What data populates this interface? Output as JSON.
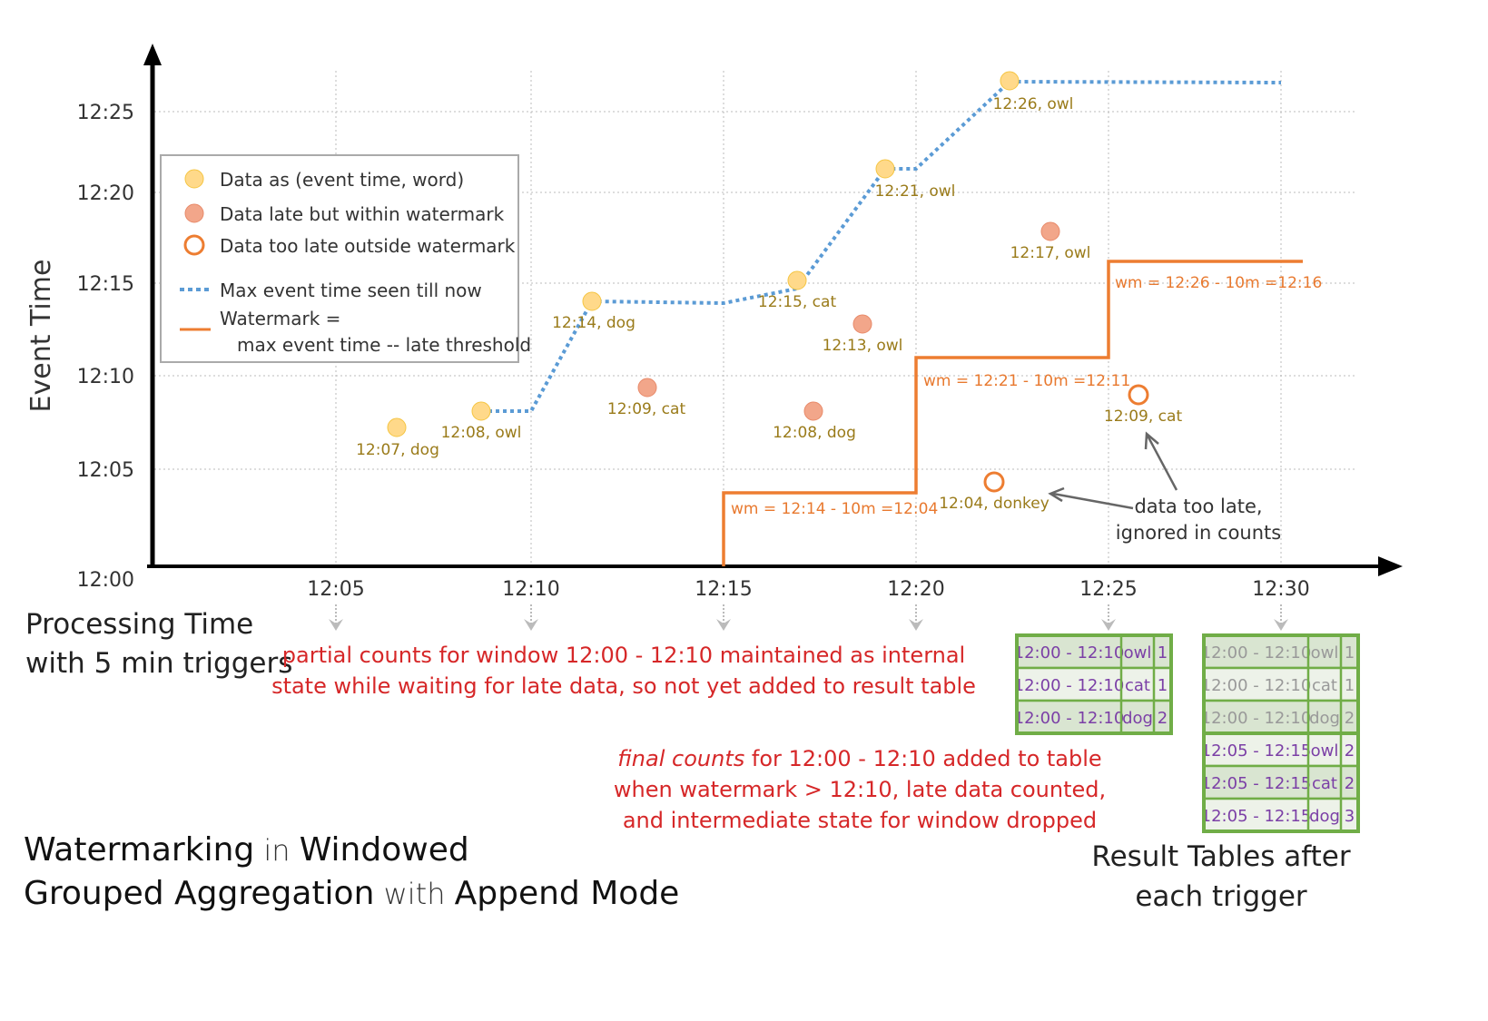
{
  "axes": {
    "y_title": "Event Time",
    "y_ticks": [
      "12:00",
      "12:05",
      "12:10",
      "12:15",
      "12:20",
      "12:25"
    ],
    "x_ticks": [
      "12:05",
      "12:10",
      "12:15",
      "12:20",
      "12:25",
      "12:30"
    ],
    "x_title_lines": [
      "Processing Time",
      "with 5 min triggers"
    ]
  },
  "legend": {
    "items": [
      {
        "label": "Data as (event time, word)",
        "marker": "yellow-circle"
      },
      {
        "label": "Data late but within watermark",
        "marker": "salmon-circle"
      },
      {
        "label": "Data too late outside watermark",
        "marker": "orange-ring"
      },
      {
        "label": "Max event time seen till now",
        "marker": "blue-dotted-line"
      },
      {
        "label": "Watermark =",
        "marker": "orange-line"
      },
      {
        "label": "max event time -- late threshold"
      }
    ]
  },
  "points": [
    {
      "label": "12:07, dog",
      "kind": "on-time"
    },
    {
      "label": "12:08, owl",
      "kind": "on-time"
    },
    {
      "label": "12:14, dog",
      "kind": "on-time"
    },
    {
      "label": "12:09, cat",
      "kind": "late"
    },
    {
      "label": "12:15, cat",
      "kind": "on-time"
    },
    {
      "label": "12:08, dog",
      "kind": "late"
    },
    {
      "label": "12:13, owl",
      "kind": "late"
    },
    {
      "label": "12:21, owl",
      "kind": "on-time"
    },
    {
      "label": "12:04, donkey",
      "kind": "too-late"
    },
    {
      "label": "12:26, owl",
      "kind": "on-time"
    },
    {
      "label": "12:17, owl",
      "kind": "late"
    },
    {
      "label": "12:09, cat",
      "kind": "too-late"
    }
  ],
  "watermark_labels": [
    "wm = 12:14 - 10m =12:04",
    "wm = 12:21 - 10m =12:11",
    "wm = 12:26 - 10m =12:16"
  ],
  "annotations": {
    "too_late": [
      "data too late,",
      "ignored in counts"
    ],
    "partial": [
      "partial counts for window 12:00 - 12:10 maintained as internal",
      "state while waiting for late data, so not yet added  to result table"
    ],
    "final_em": "final counts",
    "final": [
      " for 12:00 - 12:10 added to table",
      "when watermark > 12:10, late data counted,",
      "and intermediate state for window dropped"
    ]
  },
  "title": {
    "line1": [
      {
        "t": "Watermarking",
        "b": true
      },
      {
        "t": " in ",
        "b": false
      },
      {
        "t": "Windowed",
        "b": true
      }
    ],
    "line2": [
      {
        "t": "Grouped Aggregation",
        "b": true
      },
      {
        "t": " with ",
        "b": false
      },
      {
        "t": "Append Mode",
        "b": true
      }
    ]
  },
  "result_tables": {
    "caption": [
      "Result Tables after",
      "each trigger"
    ],
    "table_1225": [
      [
        "12:00 - 12:10",
        "owl",
        "1"
      ],
      [
        "12:00 - 12:10",
        "cat",
        "1"
      ],
      [
        "12:00 - 12:10",
        "dog",
        "2"
      ]
    ],
    "table_1230": [
      [
        "12:00 - 12:10",
        "owl",
        "1"
      ],
      [
        "12:00 - 12:10",
        "cat",
        "1"
      ],
      [
        "12:00 - 12:10",
        "dog",
        "2"
      ],
      [
        "12:05 - 12:15",
        "owl",
        "2"
      ],
      [
        "12:05 - 12:15",
        "cat",
        "2"
      ],
      [
        "12:05 - 12:15",
        "dog",
        "3"
      ]
    ]
  },
  "colors": {
    "on_time": "#ffd98a",
    "late": "#f2a68a",
    "too_late": "#ed7d31",
    "max_line": "#5b9bd5",
    "watermark": "#ed7d31",
    "table_border": "#70ad47",
    "text_red": "#d62728",
    "table_text": "#7b3fa6"
  }
}
